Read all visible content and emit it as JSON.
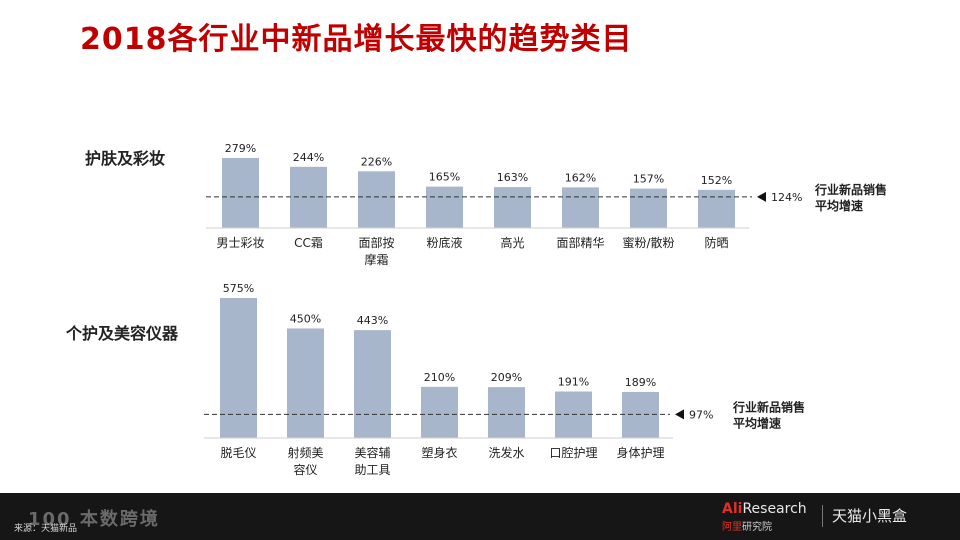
{
  "title": "2018各行业中新品增长最快的趋势类目",
  "colors": {
    "title": "#c00000",
    "bar": "#a8b6cc",
    "text": "#222222",
    "footer_bg": "#161616",
    "brand_red": "#e0302a"
  },
  "chart_data": [
    {
      "type": "bar",
      "group_label": "护肤及彩妆",
      "categories": [
        "男士彩妆",
        "CC霜",
        "面部按\n摩霜",
        "粉底液",
        "高光",
        "面部精华",
        "蜜粉/散粉",
        "防晒"
      ],
      "values": [
        279,
        244,
        226,
        165,
        163,
        162,
        157,
        152
      ],
      "value_labels": [
        "279%",
        "244%",
        "226%",
        "165%",
        "163%",
        "162%",
        "157%",
        "152%"
      ],
      "unit": "%",
      "reference_line": {
        "value": 124,
        "label": "124%",
        "caption": "行业新品销售\n平均增速"
      }
    },
    {
      "type": "bar",
      "group_label": "个护及美容仪器",
      "categories": [
        "脱毛仪",
        "射频美\n容仪",
        "美容辅\n助工具",
        "塑身衣",
        "洗发水",
        "口腔护理",
        "身体护理"
      ],
      "values": [
        575,
        450,
        443,
        210,
        209,
        191,
        189
      ],
      "value_labels": [
        "575%",
        "450%",
        "443%",
        "210%",
        "209%",
        "191%",
        "189%"
      ],
      "unit": "%",
      "reference_line": {
        "value": 97,
        "label": "97%",
        "caption": "行业新品销售\n平均增速"
      }
    }
  ],
  "footer": {
    "watermark": "100 本数跨境",
    "source": "来源：天猫新品",
    "brand_ali": "Ali",
    "brand_research": "Research",
    "brand_sub_red": "阿里",
    "brand_sub": "研究院",
    "brand_tmall": "天猫小黑盒"
  }
}
